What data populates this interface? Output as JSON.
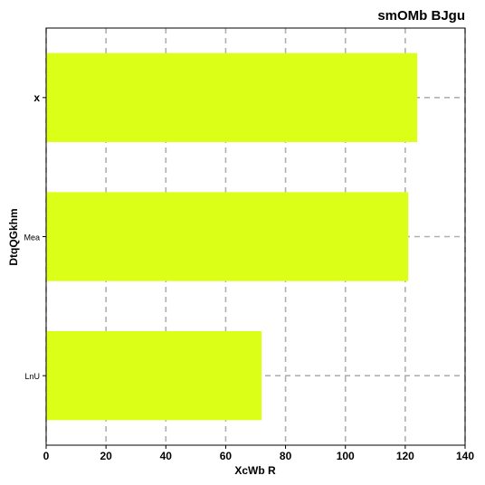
{
  "chart_data": {
    "type": "bar",
    "orientation": "horizontal",
    "title": "smOMb BJgu",
    "xlabel": "XcWb R",
    "ylabel": "DtqQGkhm",
    "categories": [
      "x",
      "Mea",
      "LnU"
    ],
    "values": [
      124,
      121,
      72
    ],
    "xlim": [
      0,
      140
    ],
    "xticks": [
      "0",
      "20",
      "40",
      "60",
      "80",
      "100",
      "120",
      "140"
    ],
    "grid": true,
    "bar_color": "#dcff17",
    "grid_color": "#b0b0b0"
  }
}
